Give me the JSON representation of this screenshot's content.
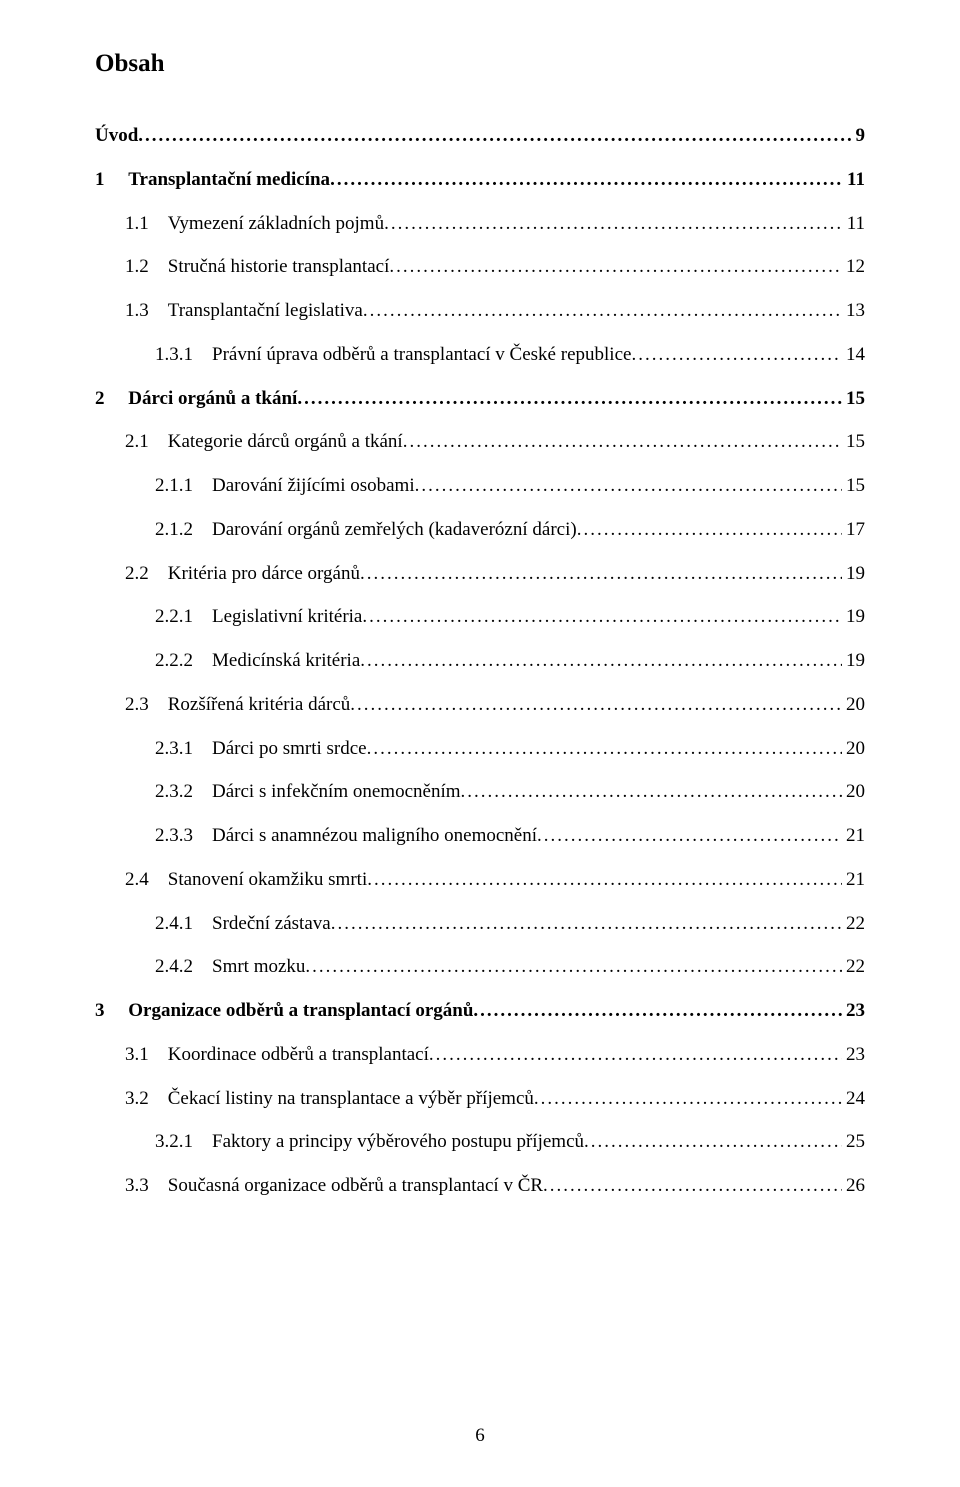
{
  "title": "Obsah",
  "footer_page": "6",
  "typography": {
    "font_family": "Times New Roman",
    "title_fontsize": 25,
    "row_fontsize": 19,
    "text_color": "#000000",
    "background_color": "#ffffff"
  },
  "entries": [
    {
      "num": "",
      "label": "Úvod",
      "page": "9",
      "indent": 0,
      "bold": true,
      "gap": ""
    },
    {
      "num": "1",
      "label": "Transplantační medicína",
      "page": "11",
      "indent": 0,
      "bold": true,
      "gap": "     "
    },
    {
      "num": "1.1",
      "label": "Vymezení základních pojmů",
      "page": "11",
      "indent": 1,
      "bold": false,
      "gap": "    "
    },
    {
      "num": "1.2",
      "label": "Stručná historie transplantací",
      "page": "12",
      "indent": 1,
      "bold": false,
      "gap": "    "
    },
    {
      "num": "1.3",
      "label": "Transplantační legislativa",
      "page": "13",
      "indent": 1,
      "bold": false,
      "gap": "    "
    },
    {
      "num": "1.3.1",
      "label": "Právní úprava odběrů a transplantací v České republice",
      "page": "14",
      "indent": 2,
      "bold": false,
      "gap": "    "
    },
    {
      "num": "2",
      "label": "Dárci orgánů a tkání",
      "page": "15",
      "indent": 0,
      "bold": true,
      "gap": "     "
    },
    {
      "num": "2.1",
      "label": "Kategorie dárců orgánů a tkání",
      "page": "15",
      "indent": 1,
      "bold": false,
      "gap": "    "
    },
    {
      "num": "2.1.1",
      "label": "Darování žijícími osobami",
      "page": "15",
      "indent": 2,
      "bold": false,
      "gap": "    "
    },
    {
      "num": "2.1.2",
      "label": "Darování orgánů zemřelých (kadaverózní dárci)",
      "page": "17",
      "indent": 2,
      "bold": false,
      "gap": "    "
    },
    {
      "num": "2.2",
      "label": "Kritéria pro dárce orgánů",
      "page": "19",
      "indent": 1,
      "bold": false,
      "gap": "    "
    },
    {
      "num": "2.2.1",
      "label": "Legislativní kritéria",
      "page": "19",
      "indent": 2,
      "bold": false,
      "gap": "    "
    },
    {
      "num": "2.2.2",
      "label": "Medicínská kritéria",
      "page": "19",
      "indent": 2,
      "bold": false,
      "gap": "    "
    },
    {
      "num": "2.3",
      "label": "Rozšířená kritéria dárců",
      "page": "20",
      "indent": 1,
      "bold": false,
      "gap": "    "
    },
    {
      "num": "2.3.1",
      "label": "Dárci po smrti srdce",
      "page": "20",
      "indent": 2,
      "bold": false,
      "gap": "    "
    },
    {
      "num": "2.3.2",
      "label": "Dárci s infekčním onemocněním",
      "page": "20",
      "indent": 2,
      "bold": false,
      "gap": "    "
    },
    {
      "num": "2.3.3",
      "label": "Dárci s anamnézou maligního onemocnění",
      "page": "21",
      "indent": 2,
      "bold": false,
      "gap": "    "
    },
    {
      "num": "2.4",
      "label": "Stanovení okamžiku smrti",
      "page": "21",
      "indent": 1,
      "bold": false,
      "gap": "    "
    },
    {
      "num": "2.4.1",
      "label": "Srdeční zástava",
      "page": "22",
      "indent": 2,
      "bold": false,
      "gap": "    "
    },
    {
      "num": "2.4.2",
      "label": "Smrt mozku",
      "page": "22",
      "indent": 2,
      "bold": false,
      "gap": "    "
    },
    {
      "num": "3",
      "label": "Organizace odběrů a transplantací orgánů",
      "page": "23",
      "indent": 0,
      "bold": true,
      "gap": "     "
    },
    {
      "num": "3.1",
      "label": "Koordinace odběrů a transplantací",
      "page": "23",
      "indent": 1,
      "bold": false,
      "gap": "    "
    },
    {
      "num": "3.2",
      "label": "Čekací listiny na transplantace a výběr příjemců",
      "page": "24",
      "indent": 1,
      "bold": false,
      "gap": "    "
    },
    {
      "num": "3.2.1",
      "label": "Faktory a principy výběrového postupu příjemců",
      "page": "25",
      "indent": 2,
      "bold": false,
      "gap": "    "
    },
    {
      "num": "3.3",
      "label": "Současná organizace odběrů a transplantací v ČR",
      "page": "26",
      "indent": 1,
      "bold": false,
      "gap": "    "
    }
  ]
}
